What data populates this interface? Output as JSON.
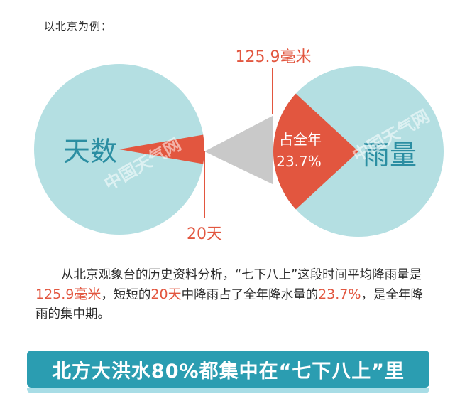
{
  "intro": "以北京为例：",
  "watermark": "中国天气网",
  "chart_data": {
    "type": "pie",
    "charts": [
      {
        "label": "天数",
        "slices": [
          {
            "label": "20天",
            "value": 20,
            "unit": "天",
            "color": "#e2563f"
          },
          {
            "label": "",
            "value": 345,
            "unit": "天",
            "color": "#b4dfe2"
          }
        ],
        "callout": "20天"
      },
      {
        "label": "雨量",
        "slices": [
          {
            "label": "占全年 23.7%",
            "value": 23.7,
            "unit": "%",
            "color": "#e2563f"
          },
          {
            "label": "",
            "value": 76.3,
            "unit": "%",
            "color": "#b4dfe2"
          }
        ],
        "callout": "125.9毫米",
        "inner_label_line1": "占全年",
        "inner_label_line2": "23.7%"
      }
    ],
    "colors": {
      "base": "#b4dfe2",
      "highlight": "#e2563f",
      "connector": "#c9c9c9",
      "label_text": "#2b8ea2"
    }
  },
  "paragraph": {
    "p1": "从北京观象台的历史资料分析，“七下八上”这段时间平均降雨量是",
    "v1": "125.9毫米",
    "p2": "，短短的",
    "v2": "20天",
    "p3": "中降雨占了全年降水量的",
    "v3": "23.7%",
    "p4": "，是全年降雨的集中期。"
  },
  "banner": "北方大洪水80%都集中在“七下八上”里"
}
